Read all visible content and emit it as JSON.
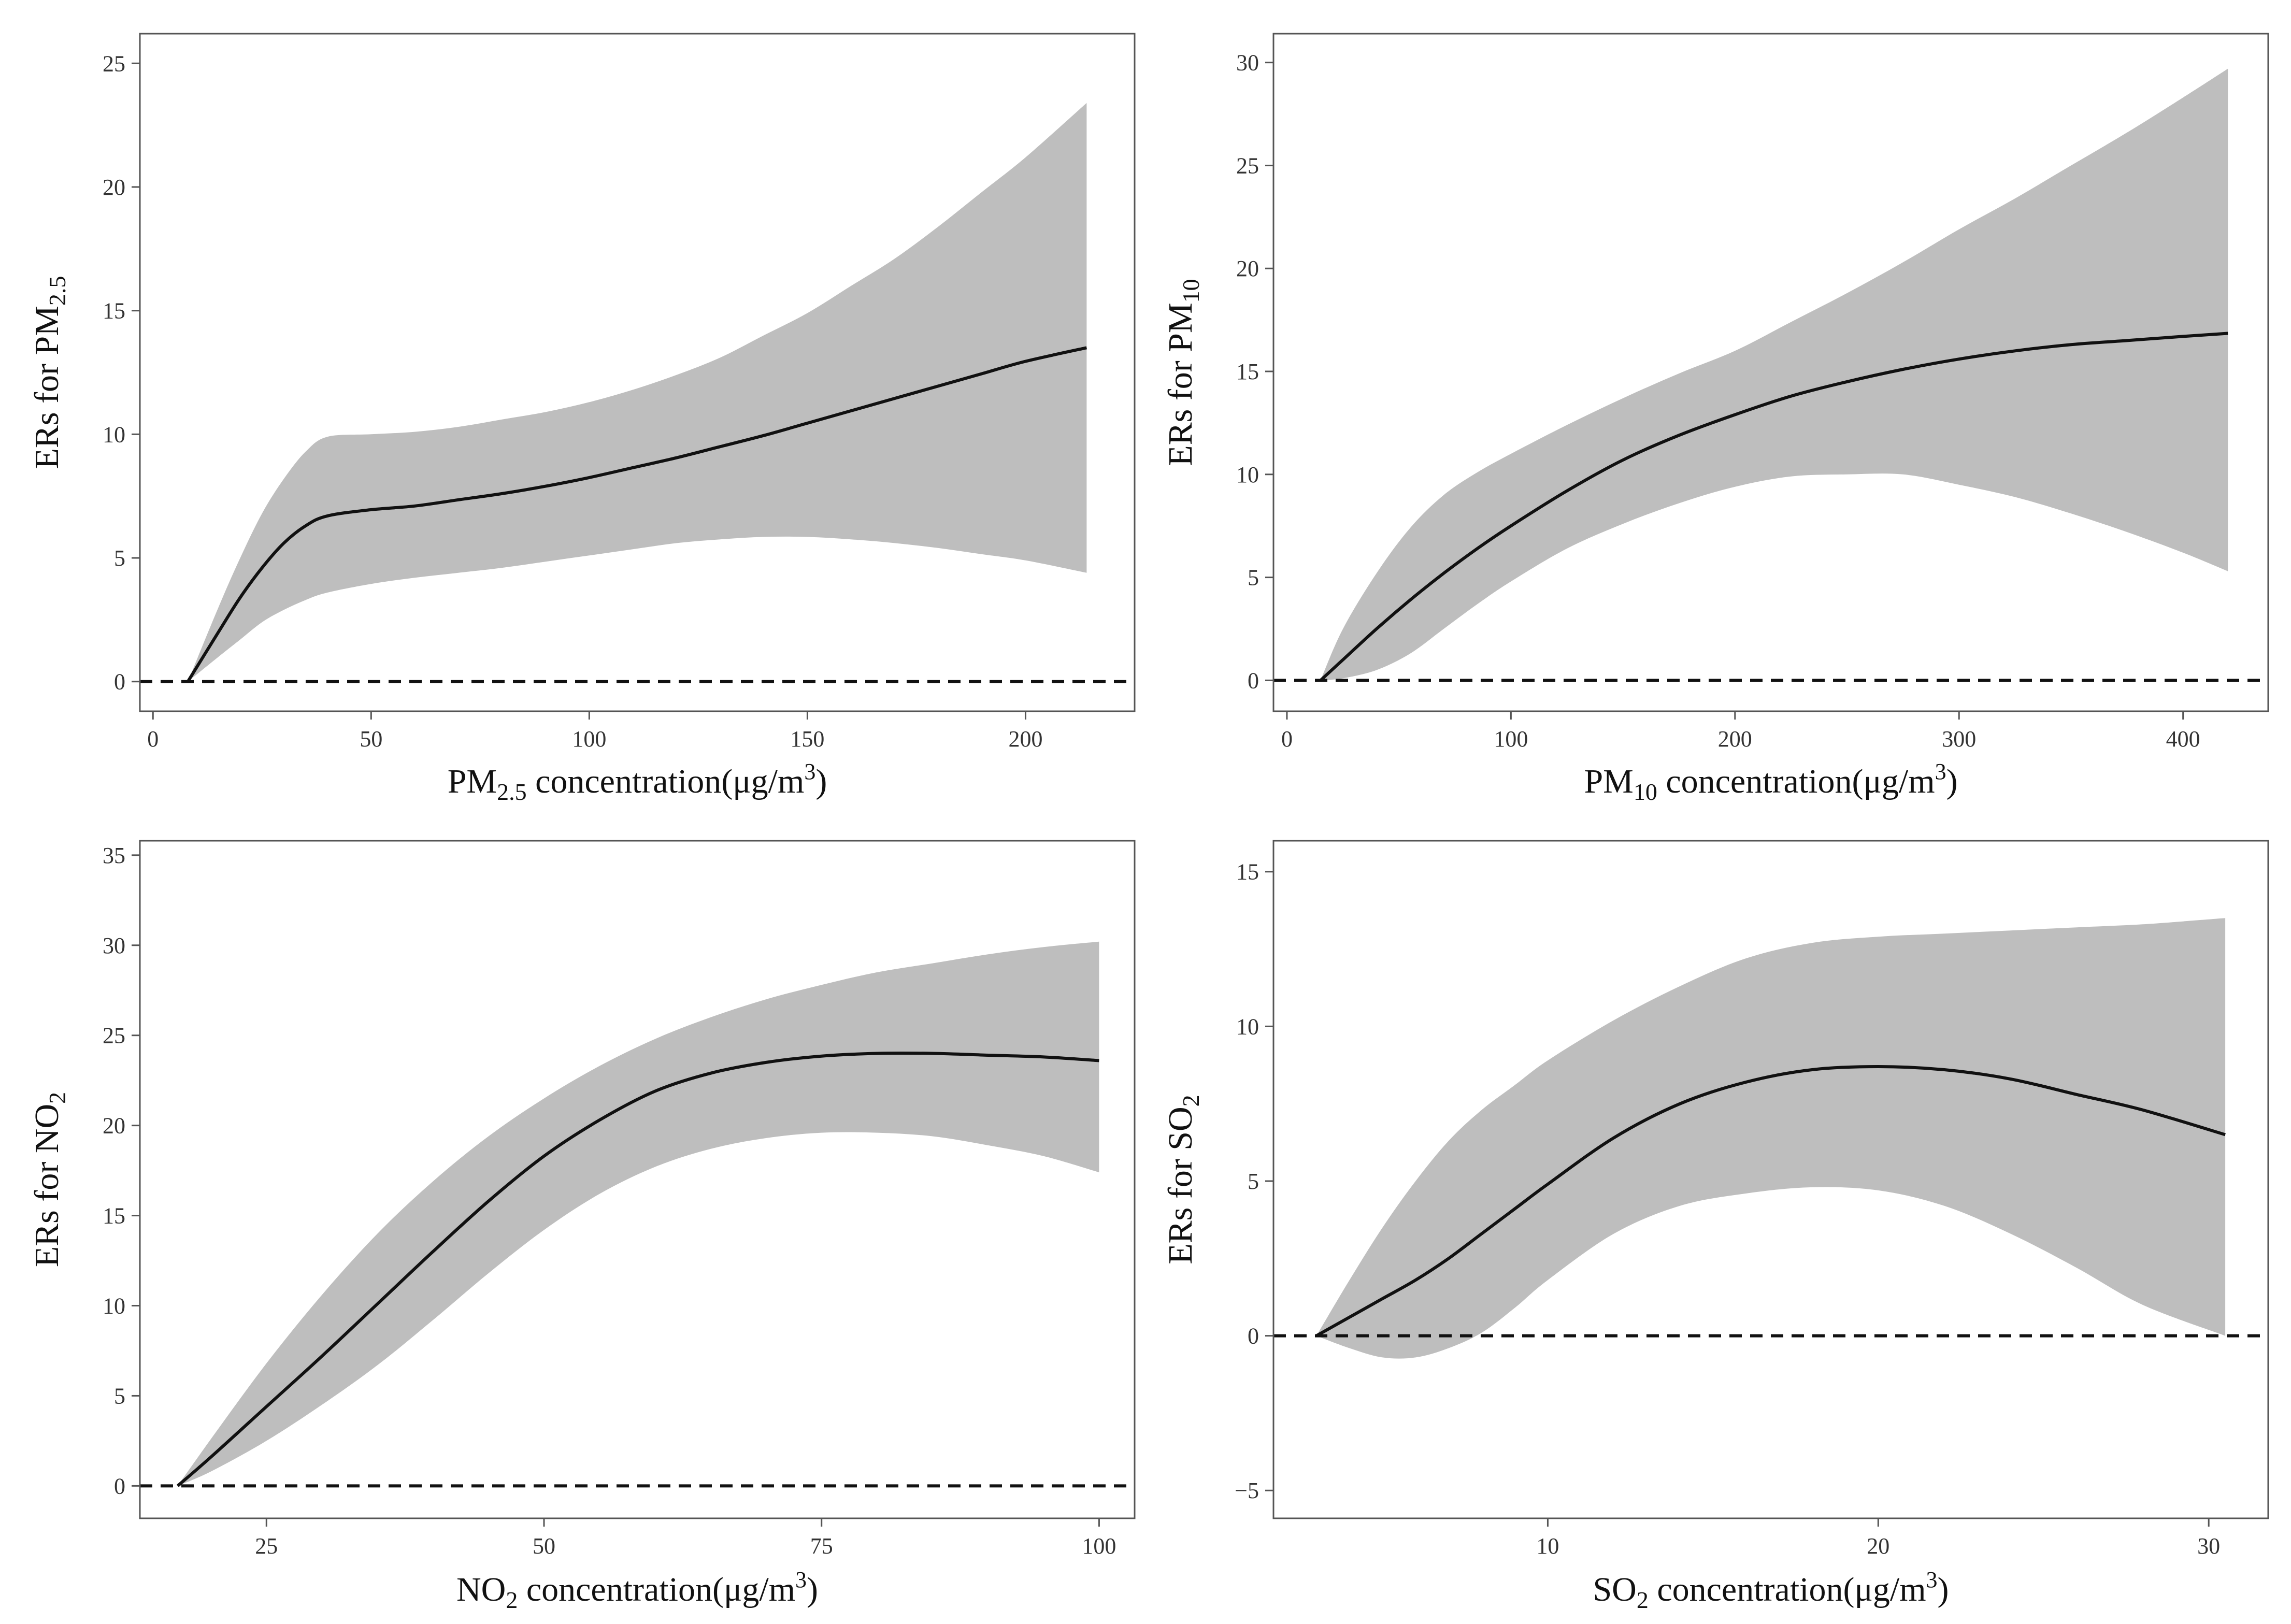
{
  "chart_data": [
    {
      "id": "pm25",
      "type": "line",
      "xlabel": {
        "main": "PM",
        "sub": "2.5",
        "rest": " concentration",
        "unit_pre": "μg/m",
        "unit_sup": "3"
      },
      "ylabel": {
        "main": "ERs for PM",
        "sub": "2.5"
      },
      "xlim": [
        -3,
        225
      ],
      "ylim": [
        -1.2,
        26.2
      ],
      "xticks": [
        0,
        50,
        100,
        150,
        200
      ],
      "yticks": [
        0,
        5,
        10,
        15,
        20,
        25
      ],
      "reference_line": 0,
      "series": [
        {
          "name": "estimate",
          "x": [
            8,
            15,
            20,
            25,
            30,
            35,
            40,
            50,
            60,
            70,
            80,
            90,
            100,
            110,
            120,
            130,
            140,
            150,
            160,
            170,
            180,
            190,
            200,
            214
          ],
          "values": [
            0,
            2.0,
            3.4,
            4.6,
            5.6,
            6.3,
            6.7,
            6.95,
            7.1,
            7.35,
            7.6,
            7.9,
            8.25,
            8.65,
            9.05,
            9.5,
            9.95,
            10.45,
            10.95,
            11.45,
            11.95,
            12.45,
            12.95,
            13.5
          ]
        },
        {
          "name": "upper",
          "x": [
            8,
            15,
            20,
            25,
            30,
            35,
            40,
            50,
            60,
            70,
            80,
            90,
            100,
            110,
            120,
            130,
            140,
            150,
            160,
            170,
            180,
            190,
            200,
            214
          ],
          "values": [
            0,
            3.0,
            5.0,
            6.8,
            8.2,
            9.3,
            9.9,
            10.0,
            10.1,
            10.3,
            10.6,
            10.9,
            11.3,
            11.8,
            12.4,
            13.1,
            14.0,
            14.9,
            16.0,
            17.1,
            18.4,
            19.8,
            21.2,
            23.4
          ]
        },
        {
          "name": "lower",
          "x": [
            8,
            15,
            20,
            25,
            30,
            35,
            40,
            50,
            60,
            70,
            80,
            90,
            100,
            110,
            120,
            130,
            140,
            150,
            160,
            170,
            180,
            190,
            200,
            214
          ],
          "values": [
            0,
            1.0,
            1.7,
            2.4,
            2.9,
            3.3,
            3.6,
            3.95,
            4.2,
            4.4,
            4.6,
            4.85,
            5.1,
            5.35,
            5.6,
            5.75,
            5.85,
            5.85,
            5.75,
            5.6,
            5.4,
            5.15,
            4.9,
            4.4
          ]
        }
      ]
    },
    {
      "id": "pm10",
      "type": "line",
      "xlabel": {
        "main": "PM",
        "sub": "10",
        "rest": " concentration",
        "unit_pre": "μg/m",
        "unit_sup": "3"
      },
      "ylabel": {
        "main": "ERs for PM",
        "sub": "10"
      },
      "xlim": [
        -6,
        438
      ],
      "ylim": [
        -1.5,
        31.4
      ],
      "xticks": [
        0,
        100,
        200,
        300,
        400
      ],
      "yticks": [
        0,
        5,
        10,
        15,
        20,
        25,
        30
      ],
      "reference_line": 0,
      "series": [
        {
          "name": "estimate",
          "x": [
            15,
            25,
            40,
            55,
            70,
            85,
            100,
            125,
            150,
            175,
            200,
            225,
            250,
            275,
            300,
            325,
            350,
            375,
            400,
            420
          ],
          "values": [
            0,
            1.0,
            2.5,
            3.9,
            5.2,
            6.4,
            7.5,
            9.2,
            10.7,
            11.9,
            12.9,
            13.8,
            14.5,
            15.1,
            15.6,
            16.0,
            16.3,
            16.5,
            16.7,
            16.85
          ]
        },
        {
          "name": "upper",
          "x": [
            15,
            25,
            40,
            55,
            70,
            85,
            100,
            125,
            150,
            175,
            200,
            225,
            250,
            275,
            300,
            325,
            350,
            375,
            400,
            420
          ],
          "values": [
            0,
            2.5,
            5.2,
            7.4,
            9.0,
            10.1,
            11.0,
            12.4,
            13.7,
            14.9,
            16.0,
            17.4,
            18.8,
            20.3,
            21.9,
            23.4,
            25.0,
            26.6,
            28.3,
            29.7
          ]
        },
        {
          "name": "lower",
          "x": [
            15,
            25,
            40,
            55,
            70,
            85,
            100,
            125,
            150,
            175,
            200,
            225,
            250,
            275,
            300,
            325,
            350,
            375,
            400,
            420
          ],
          "values": [
            0,
            0.1,
            0.5,
            1.3,
            2.5,
            3.7,
            4.8,
            6.4,
            7.6,
            8.6,
            9.4,
            9.9,
            10.0,
            10.0,
            9.5,
            8.9,
            8.1,
            7.2,
            6.2,
            5.3
          ]
        }
      ]
    },
    {
      "id": "no2",
      "type": "line",
      "xlabel": {
        "main": "NO",
        "sub": "2",
        "rest": " concentration",
        "unit_pre": "μg/m",
        "unit_sup": "3"
      },
      "ylabel": {
        "main": "ERs for NO",
        "sub": "2"
      },
      "xlim": [
        13.6,
        103.2
      ],
      "ylim": [
        -1.8,
        35.8
      ],
      "xticks": [
        25,
        50,
        75,
        100
      ],
      "yticks": [
        0,
        5,
        10,
        15,
        20,
        25,
        30,
        35
      ],
      "reference_line": 0,
      "series": [
        {
          "name": "estimate",
          "x": [
            17,
            20,
            25,
            30,
            35,
            40,
            45,
            50,
            55,
            60,
            65,
            70,
            75,
            80,
            85,
            90,
            95,
            100
          ],
          "values": [
            0,
            1.6,
            4.4,
            7.2,
            10.1,
            13.0,
            15.8,
            18.3,
            20.3,
            21.9,
            22.9,
            23.5,
            23.85,
            24.0,
            24.0,
            23.9,
            23.8,
            23.6
          ]
        },
        {
          "name": "upper",
          "x": [
            17,
            20,
            25,
            30,
            35,
            40,
            45,
            50,
            55,
            60,
            65,
            70,
            75,
            80,
            85,
            90,
            95,
            100
          ],
          "values": [
            0,
            2.6,
            6.8,
            10.6,
            14.0,
            16.9,
            19.4,
            21.5,
            23.3,
            24.8,
            26.0,
            27.0,
            27.8,
            28.5,
            29.0,
            29.5,
            29.9,
            30.2
          ]
        },
        {
          "name": "lower",
          "x": [
            17,
            20,
            25,
            30,
            35,
            40,
            45,
            50,
            55,
            60,
            65,
            70,
            75,
            80,
            85,
            90,
            95,
            100
          ],
          "values": [
            0,
            0.8,
            2.5,
            4.5,
            6.7,
            9.2,
            11.8,
            14.2,
            16.2,
            17.7,
            18.7,
            19.3,
            19.6,
            19.6,
            19.4,
            18.9,
            18.3,
            17.4
          ]
        }
      ]
    },
    {
      "id": "so2",
      "type": "line",
      "xlabel": {
        "main": "SO",
        "sub": "2",
        "rest": " concentration",
        "unit_pre": "μg/m",
        "unit_sup": "3"
      },
      "ylabel": {
        "main": "ERs for SO",
        "sub": "2"
      },
      "xlim": [
        1.7,
        31.8
      ],
      "ylim": [
        -5.9,
        16.0
      ],
      "xticks": [
        10,
        20,
        30
      ],
      "yticks": [
        -5,
        0,
        5,
        10,
        15
      ],
      "reference_line": 0,
      "series": [
        {
          "name": "estimate",
          "x": [
            3,
            4,
            5,
            6,
            7,
            8,
            9,
            10,
            12,
            14,
            16,
            18,
            20,
            22,
            24,
            26,
            28,
            30.5
          ],
          "values": [
            0,
            0.6,
            1.2,
            1.8,
            2.5,
            3.3,
            4.1,
            4.9,
            6.4,
            7.5,
            8.2,
            8.6,
            8.7,
            8.6,
            8.3,
            7.8,
            7.3,
            6.5
          ]
        },
        {
          "name": "upper",
          "x": [
            3,
            4,
            5,
            6,
            7,
            8,
            9,
            10,
            12,
            14,
            16,
            18,
            20,
            22,
            24,
            26,
            28,
            30.5
          ],
          "values": [
            0,
            1.8,
            3.5,
            5.0,
            6.3,
            7.3,
            8.1,
            8.9,
            10.2,
            11.3,
            12.2,
            12.7,
            12.9,
            13.0,
            13.1,
            13.2,
            13.3,
            13.5
          ]
        },
        {
          "name": "lower",
          "x": [
            3,
            4,
            5,
            6,
            7,
            8,
            9,
            10,
            12,
            14,
            16,
            18,
            20,
            22,
            24,
            26,
            28,
            30.5
          ],
          "values": [
            0,
            -0.4,
            -0.7,
            -0.7,
            -0.4,
            0.1,
            0.9,
            1.8,
            3.3,
            4.2,
            4.6,
            4.8,
            4.7,
            4.2,
            3.3,
            2.2,
            1.0,
            0
          ]
        }
      ]
    }
  ]
}
